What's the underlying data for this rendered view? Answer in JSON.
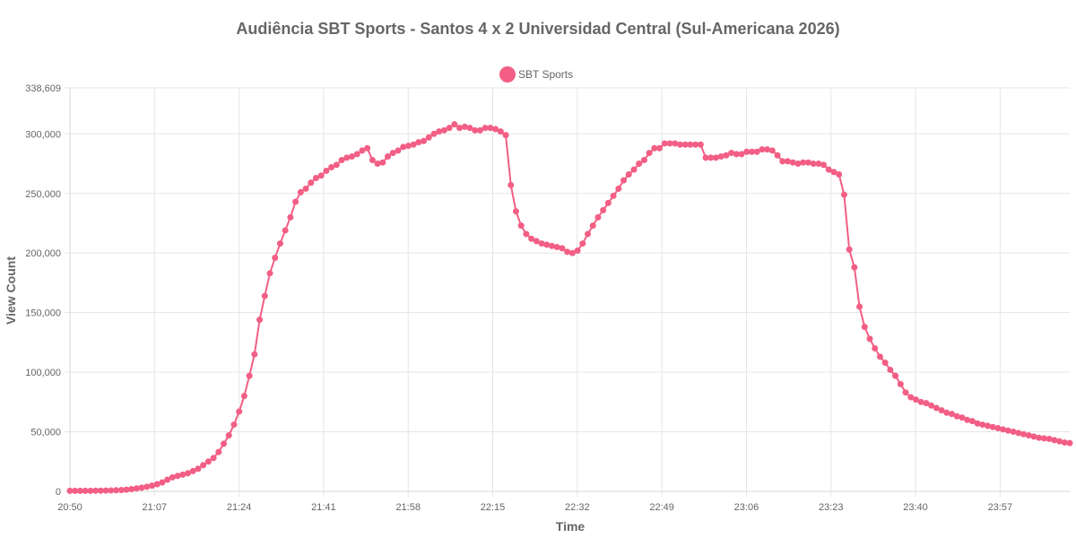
{
  "chart_data": {
    "type": "line",
    "title": "Audiência SBT Sports - Santos 4 x 2 Universidad Central (Sul-Americana 2026)",
    "xlabel": "Time",
    "ylabel": "View Count",
    "x_ticks": [
      "20:50",
      "21:07",
      "21:24",
      "21:41",
      "21:58",
      "22:15",
      "22:32",
      "22:49",
      "23:06",
      "23:23",
      "23:40",
      "23:57"
    ],
    "y_ticks": [
      "0",
      "50,000",
      "100,000",
      "150,000",
      "200,000",
      "250,000",
      "300,000",
      "338,609"
    ],
    "ylim": [
      0,
      338609
    ],
    "x_range": [
      "20:50",
      "00:11"
    ],
    "grid": true,
    "legend_position": "top-center",
    "series": [
      {
        "name": "SBT Sports",
        "color": "#f25e84",
        "values": [
          500,
          500,
          500,
          500,
          500,
          600,
          600,
          700,
          800,
          900,
          1100,
          1400,
          1900,
          2500,
          3100,
          3900,
          4800,
          6000,
          7500,
          9800,
          11800,
          13000,
          14000,
          15200,
          17000,
          19000,
          22000,
          25000,
          28000,
          33000,
          40000,
          47000,
          56000,
          67000,
          80000,
          97000,
          115000,
          144000,
          164000,
          183000,
          196000,
          208000,
          219000,
          230000,
          243000,
          251000,
          254000,
          259000,
          263000,
          265000,
          269000,
          272000,
          274000,
          278000,
          280000,
          281000,
          283000,
          286000,
          288000,
          278000,
          275000,
          276000,
          281000,
          284000,
          286000,
          289000,
          290000,
          291000,
          293000,
          294000,
          297000,
          300000,
          302000,
          303000,
          305000,
          308000,
          305000,
          306000,
          305000,
          303000,
          303000,
          305000,
          305000,
          304000,
          302000,
          299000,
          257000,
          235000,
          223000,
          216000,
          212000,
          210000,
          208000,
          207000,
          206000,
          205000,
          204000,
          201000,
          200000,
          202000,
          208000,
          216000,
          223000,
          230000,
          236000,
          242000,
          248000,
          254000,
          261000,
          266000,
          270000,
          275000,
          278000,
          284000,
          288000,
          288000,
          292000,
          292000,
          292000,
          291000,
          291000,
          291000,
          291000,
          291000,
          280000,
          280000,
          280000,
          281000,
          282000,
          284000,
          283000,
          283000,
          285000,
          285000,
          285000,
          287000,
          287000,
          286000,
          282000,
          277000,
          277000,
          276000,
          275000,
          276000,
          276000,
          275000,
          275000,
          274000,
          270000,
          268000,
          266000,
          249000,
          203000,
          188000,
          155000,
          138000,
          128000,
          120000,
          113000,
          108000,
          102000,
          97000,
          90000,
          83000,
          79000,
          77000,
          75000,
          74000,
          72000,
          70000,
          68000,
          66000,
          65000,
          63000,
          62000,
          60000,
          59000,
          57000,
          56000,
          55000,
          54000,
          53000,
          52000,
          51000,
          50000,
          49000,
          48000,
          47000,
          46000,
          45000,
          44500,
          44000,
          43000,
          42000,
          41000,
          40500
        ]
      }
    ]
  }
}
